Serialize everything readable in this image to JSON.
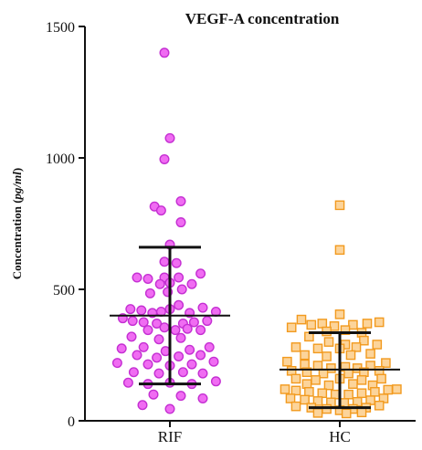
{
  "chart_data": {
    "type": "scatter",
    "title": "VEGF-A concentration",
    "ylabel": "Concentration (pg/ml)",
    "ylabel_parts": {
      "plain": "Concentration (",
      "italic": "pg/ml",
      "close": ")"
    },
    "xlabel": "",
    "ylim": [
      0,
      1500
    ],
    "yticks": [
      0,
      500,
      1000,
      1500
    ],
    "categories": [
      "RIF",
      "HC"
    ],
    "grid": false,
    "colors": {
      "RIF_fill": "#f06cf2",
      "RIF_stroke": "#c42fd2",
      "HC_fill": "#fcd49a",
      "HC_stroke": "#f29a1e",
      "axis": "#111111",
      "error_bar": "#111111"
    },
    "groups": [
      {
        "category": "RIF",
        "marker": "circle",
        "mean": 400,
        "error_upper": 660,
        "error_lower": 140,
        "points": [
          {
            "x": -0.05,
            "y": 1400
          },
          {
            "x": 0.0,
            "y": 1075
          },
          {
            "x": -0.05,
            "y": 995
          },
          {
            "x": 0.1,
            "y": 835
          },
          {
            "x": -0.14,
            "y": 815
          },
          {
            "x": -0.08,
            "y": 800
          },
          {
            "x": 0.1,
            "y": 755
          },
          {
            "x": 0.0,
            "y": 670
          },
          {
            "x": -0.05,
            "y": 605
          },
          {
            "x": 0.06,
            "y": 600
          },
          {
            "x": -0.3,
            "y": 545
          },
          {
            "x": -0.2,
            "y": 540
          },
          {
            "x": -0.05,
            "y": 545
          },
          {
            "x": 0.08,
            "y": 545
          },
          {
            "x": 0.28,
            "y": 560
          },
          {
            "x": -0.09,
            "y": 520
          },
          {
            "x": 0.0,
            "y": 525
          },
          {
            "x": -0.02,
            "y": 490
          },
          {
            "x": 0.11,
            "y": 500
          },
          {
            "x": 0.2,
            "y": 520
          },
          {
            "x": -0.18,
            "y": 485
          },
          {
            "x": -0.36,
            "y": 425
          },
          {
            "x": -0.26,
            "y": 420
          },
          {
            "x": -0.16,
            "y": 410
          },
          {
            "x": -0.08,
            "y": 415
          },
          {
            "x": 0.0,
            "y": 425
          },
          {
            "x": 0.08,
            "y": 440
          },
          {
            "x": 0.18,
            "y": 410
          },
          {
            "x": 0.3,
            "y": 430
          },
          {
            "x": 0.42,
            "y": 415
          },
          {
            "x": -0.43,
            "y": 390
          },
          {
            "x": -0.34,
            "y": 380
          },
          {
            "x": -0.24,
            "y": 375
          },
          {
            "x": -0.12,
            "y": 370
          },
          {
            "x": 0.12,
            "y": 370
          },
          {
            "x": 0.22,
            "y": 375
          },
          {
            "x": 0.34,
            "y": 380
          },
          {
            "x": -0.2,
            "y": 345
          },
          {
            "x": -0.05,
            "y": 355
          },
          {
            "x": 0.05,
            "y": 345
          },
          {
            "x": 0.16,
            "y": 350
          },
          {
            "x": 0.28,
            "y": 345
          },
          {
            "x": -0.35,
            "y": 320
          },
          {
            "x": -0.1,
            "y": 310
          },
          {
            "x": 0.1,
            "y": 315
          },
          {
            "x": -0.44,
            "y": 275
          },
          {
            "x": -0.24,
            "y": 280
          },
          {
            "x": -0.04,
            "y": 265
          },
          {
            "x": 0.18,
            "y": 270
          },
          {
            "x": 0.36,
            "y": 280
          },
          {
            "x": -0.3,
            "y": 250
          },
          {
            "x": -0.12,
            "y": 240
          },
          {
            "x": 0.08,
            "y": 245
          },
          {
            "x": 0.28,
            "y": 250
          },
          {
            "x": -0.48,
            "y": 220
          },
          {
            "x": -0.2,
            "y": 215
          },
          {
            "x": 0.0,
            "y": 210
          },
          {
            "x": 0.2,
            "y": 215
          },
          {
            "x": 0.4,
            "y": 225
          },
          {
            "x": -0.33,
            "y": 185
          },
          {
            "x": -0.1,
            "y": 180
          },
          {
            "x": 0.12,
            "y": 185
          },
          {
            "x": 0.3,
            "y": 180
          },
          {
            "x": -0.38,
            "y": 145
          },
          {
            "x": -0.2,
            "y": 140
          },
          {
            "x": 0.0,
            "y": 145
          },
          {
            "x": 0.2,
            "y": 140
          },
          {
            "x": 0.42,
            "y": 150
          },
          {
            "x": -0.15,
            "y": 100
          },
          {
            "x": 0.1,
            "y": 95
          },
          {
            "x": 0.3,
            "y": 85
          },
          {
            "x": -0.25,
            "y": 60
          },
          {
            "x": 0.0,
            "y": 45
          }
        ]
      },
      {
        "category": "HC",
        "marker": "square",
        "mean": 195,
        "error_upper": 335,
        "error_lower": 50,
        "points": [
          {
            "x": 0.0,
            "y": 820
          },
          {
            "x": 0.0,
            "y": 650
          },
          {
            "x": 0.0,
            "y": 405
          },
          {
            "x": -0.35,
            "y": 385
          },
          {
            "x": -0.26,
            "y": 365
          },
          {
            "x": -0.16,
            "y": 370
          },
          {
            "x": -0.05,
            "y": 360
          },
          {
            "x": 0.12,
            "y": 365
          },
          {
            "x": 0.25,
            "y": 370
          },
          {
            "x": 0.36,
            "y": 375
          },
          {
            "x": -0.44,
            "y": 355
          },
          {
            "x": -0.12,
            "y": 340
          },
          {
            "x": 0.05,
            "y": 345
          },
          {
            "x": 0.2,
            "y": 335
          },
          {
            "x": -0.28,
            "y": 320
          },
          {
            "x": -0.1,
            "y": 300
          },
          {
            "x": 0.22,
            "y": 305
          },
          {
            "x": 0.05,
            "y": 290
          },
          {
            "x": -0.4,
            "y": 280
          },
          {
            "x": -0.2,
            "y": 275
          },
          {
            "x": 0.0,
            "y": 275
          },
          {
            "x": 0.15,
            "y": 280
          },
          {
            "x": 0.34,
            "y": 290
          },
          {
            "x": -0.32,
            "y": 250
          },
          {
            "x": -0.12,
            "y": 245
          },
          {
            "x": 0.1,
            "y": 250
          },
          {
            "x": 0.28,
            "y": 255
          },
          {
            "x": -0.48,
            "y": 225
          },
          {
            "x": -0.32,
            "y": 215
          },
          {
            "x": -0.2,
            "y": 210
          },
          {
            "x": -0.08,
            "y": 200
          },
          {
            "x": 0.05,
            "y": 205
          },
          {
            "x": 0.16,
            "y": 200
          },
          {
            "x": 0.28,
            "y": 210
          },
          {
            "x": 0.42,
            "y": 220
          },
          {
            "x": -0.44,
            "y": 190
          },
          {
            "x": -0.3,
            "y": 185
          },
          {
            "x": -0.15,
            "y": 180
          },
          {
            "x": 0.08,
            "y": 180
          },
          {
            "x": 0.22,
            "y": 185
          },
          {
            "x": 0.36,
            "y": 190
          },
          {
            "x": -0.4,
            "y": 160
          },
          {
            "x": -0.22,
            "y": 155
          },
          {
            "x": 0.0,
            "y": 160
          },
          {
            "x": 0.2,
            "y": 155
          },
          {
            "x": 0.38,
            "y": 160
          },
          {
            "x": -0.3,
            "y": 140
          },
          {
            "x": -0.1,
            "y": 135
          },
          {
            "x": 0.12,
            "y": 140
          },
          {
            "x": 0.3,
            "y": 135
          },
          {
            "x": -0.5,
            "y": 120
          },
          {
            "x": -0.4,
            "y": 115
          },
          {
            "x": -0.28,
            "y": 110
          },
          {
            "x": -0.16,
            "y": 105
          },
          {
            "x": -0.04,
            "y": 100
          },
          {
            "x": 0.08,
            "y": 100
          },
          {
            "x": 0.2,
            "y": 105
          },
          {
            "x": 0.32,
            "y": 110
          },
          {
            "x": 0.44,
            "y": 118
          },
          {
            "x": 0.52,
            "y": 120
          },
          {
            "x": -0.45,
            "y": 85
          },
          {
            "x": -0.32,
            "y": 80
          },
          {
            "x": -0.2,
            "y": 75
          },
          {
            "x": -0.08,
            "y": 70
          },
          {
            "x": 0.04,
            "y": 68
          },
          {
            "x": 0.16,
            "y": 72
          },
          {
            "x": 0.28,
            "y": 78
          },
          {
            "x": 0.4,
            "y": 85
          },
          {
            "x": -0.4,
            "y": 55
          },
          {
            "x": -0.26,
            "y": 50
          },
          {
            "x": -0.12,
            "y": 45
          },
          {
            "x": 0.0,
            "y": 40
          },
          {
            "x": 0.12,
            "y": 45
          },
          {
            "x": 0.24,
            "y": 50
          },
          {
            "x": 0.36,
            "y": 58
          },
          {
            "x": -0.2,
            "y": 30
          },
          {
            "x": 0.06,
            "y": 28
          },
          {
            "x": 0.2,
            "y": 32
          }
        ]
      }
    ]
  }
}
